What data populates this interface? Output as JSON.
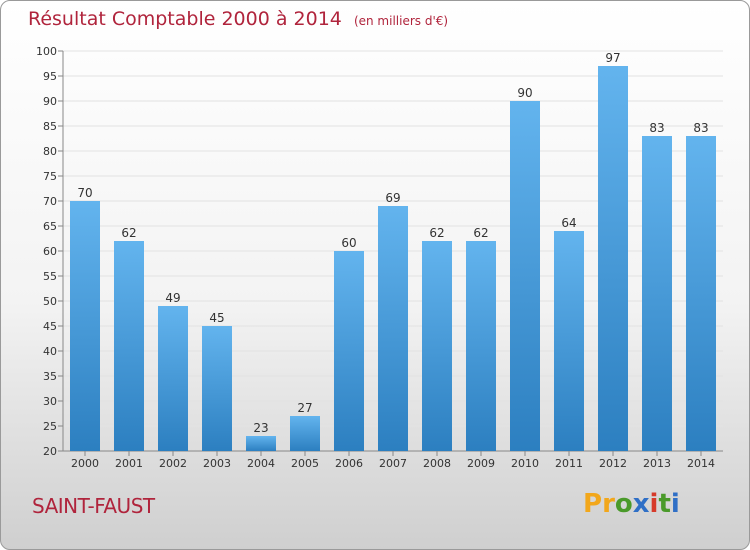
{
  "title": {
    "main": "Résultat Comptable 2000 à 2014",
    "unit": "(en milliers d'€)"
  },
  "footer": {
    "town": "SAINT-FAUST",
    "logo_letters": [
      "P",
      "r",
      "o",
      "x",
      "i",
      "t",
      "i"
    ]
  },
  "colors": {
    "title": "#b0243c",
    "bar_top": "#63b4ee",
    "bar_bottom": "#2c7fc0",
    "logo": [
      "#f2a71b",
      "#f2a71b",
      "#4a9a2a",
      "#2f6fc6",
      "#d63a2a",
      "#4a9a2a",
      "#2f6fc6"
    ]
  },
  "chart_data": {
    "type": "bar",
    "categories": [
      "2000",
      "2001",
      "2002",
      "2003",
      "2004",
      "2005",
      "2006",
      "2007",
      "2008",
      "2009",
      "2010",
      "2011",
      "2012",
      "2013",
      "2014"
    ],
    "values": [
      70,
      62,
      49,
      45,
      23,
      27,
      60,
      69,
      62,
      62,
      90,
      64,
      97,
      83,
      83
    ],
    "ylim": [
      20,
      100
    ],
    "yticks": [
      20,
      25,
      30,
      35,
      40,
      45,
      50,
      55,
      60,
      65,
      70,
      75,
      80,
      85,
      90,
      95,
      100
    ],
    "grid": true
  }
}
